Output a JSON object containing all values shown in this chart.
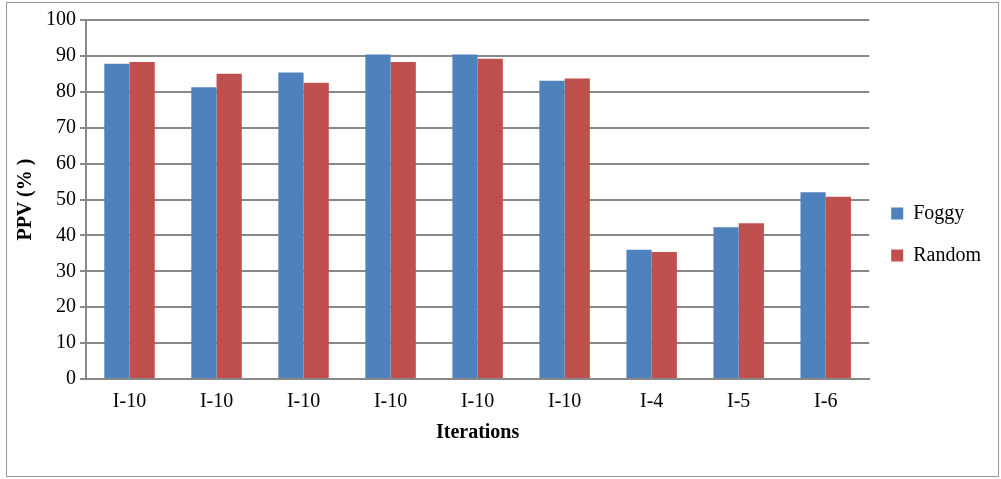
{
  "chart_data": {
    "type": "bar",
    "xlabel": "Iterations",
    "ylabel": "PPV (% )",
    "categories": [
      "I-10",
      "I-10",
      "I-10",
      "I-10",
      "I-10",
      "I-10",
      "I-4",
      "I-5",
      "I-6"
    ],
    "series": [
      {
        "name": "Foggy",
        "color": "#4f81bd",
        "values": [
          87.8,
          81.3,
          85.4,
          90.4,
          90.4,
          83.1,
          36,
          42.3,
          52
        ]
      },
      {
        "name": "Random",
        "color": "#c0504d",
        "values": [
          88.3,
          85,
          82.5,
          88.3,
          89.2,
          83.7,
          35.4,
          43.4,
          50.8
        ]
      }
    ],
    "ylim": [
      0,
      100
    ],
    "yticks": [
      0,
      10,
      20,
      30,
      40,
      50,
      60,
      70,
      80,
      90,
      100
    ],
    "grid": "y",
    "legend": "right"
  }
}
